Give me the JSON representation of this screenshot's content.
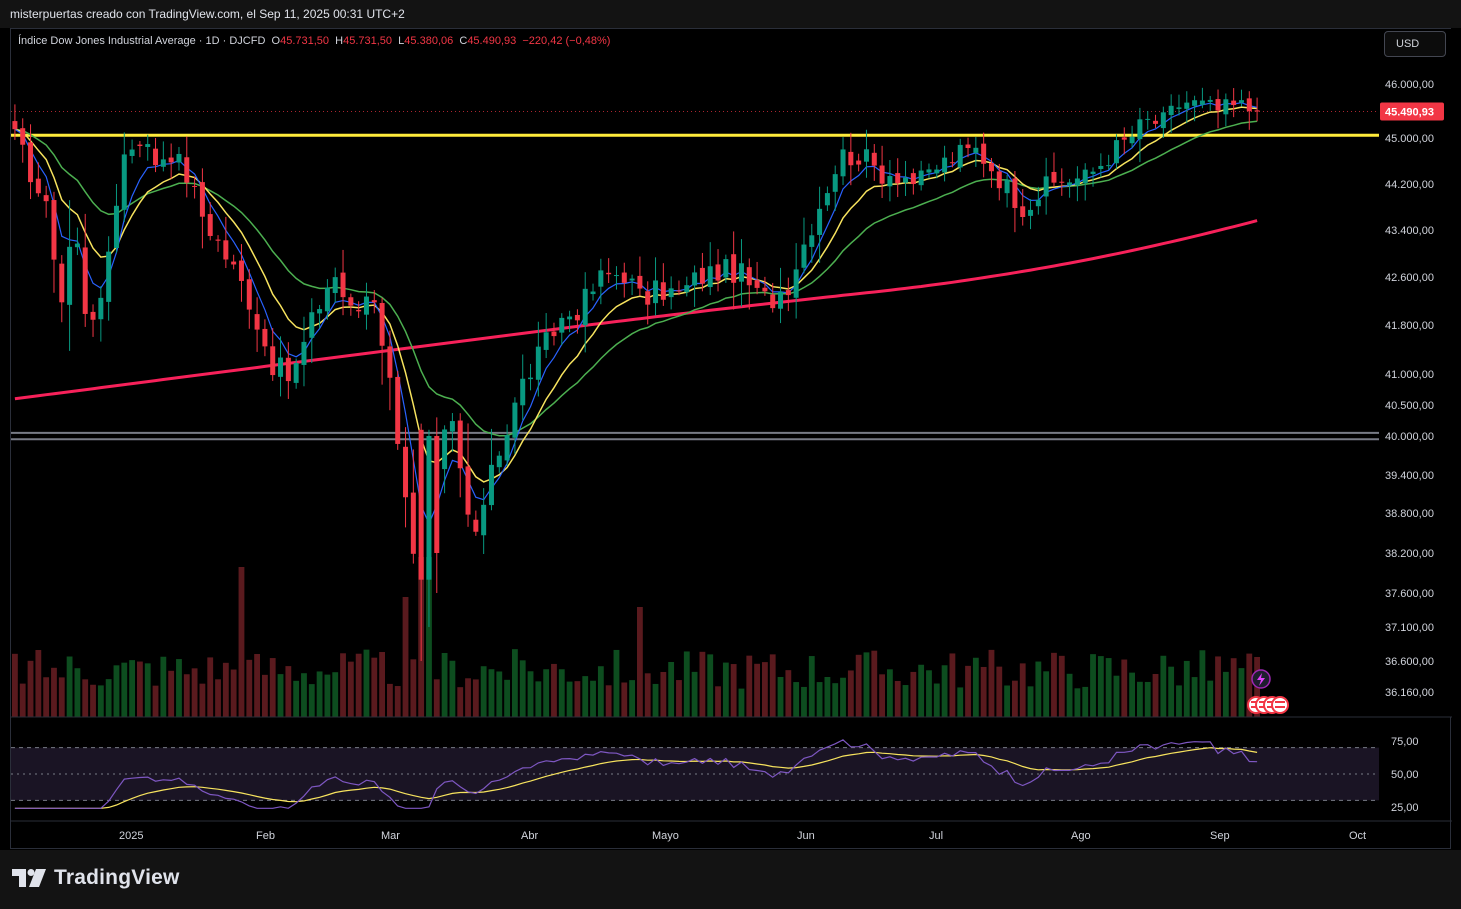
{
  "header": {
    "caption": "misterpuertas creado con TradingView.com, el Sep 11, 2025 00:31 UTC+2"
  },
  "legend": {
    "instrument": "Índice Dow Jones Industrial Average · 1D · DJCFD",
    "o_label": "O",
    "o_value": "45.731,50",
    "h_label": "H",
    "h_value": "45.731,50",
    "l_label": "L",
    "l_value": "45.380,06",
    "c_label": "C",
    "c_value": "45.490,93",
    "change": "−220,42 (−0,48%)"
  },
  "currency_button": "USD",
  "price_label": "45.490,93",
  "brand": "TradingView",
  "colors": {
    "up": "#089981",
    "down": "#f23645",
    "volume_up": "#0d4d1f",
    "volume_down": "#5a1a1e",
    "ema_fast": "#2962ff",
    "ema_20": "#f7e35e",
    "sma_50": "#4caf50",
    "sma_200": "#f7215a",
    "resistance": "#ffeb3b",
    "support": "#787b86",
    "rsi": "#7e57c2",
    "rsi_ma": "#f7e35e"
  },
  "icons": [
    "lightning-icon",
    "us-flag-icon"
  ],
  "chart_data": {
    "type": "candlestick",
    "price_axis_ticks": [
      "46.000,00",
      "45.000,00",
      "44.200,00",
      "43.400,00",
      "42.600,00",
      "41.800,00",
      "41.000,00",
      "40.500,00",
      "40.000,00",
      "39.400,00",
      "38.800,00",
      "38.200,00",
      "37.600,00",
      "37.100,00",
      "36.600,00",
      "36.160,00"
    ],
    "price_axis_values": [
      46000,
      45000,
      44200,
      43400,
      42600,
      41800,
      41000,
      40500,
      40000,
      39400,
      38800,
      38200,
      37600,
      37100,
      36600,
      36160
    ],
    "time_axis_ticks": [
      "2025",
      "Feb",
      "Mar",
      "Abr",
      "Mayo",
      "Jun",
      "Jul",
      "Ago",
      "Sep",
      "Oct"
    ],
    "rsi_axis_ticks": [
      "75,00",
      "50,00",
      "25,00"
    ],
    "rsi_axis_values": [
      75,
      50,
      25
    ],
    "horizontal_levels": [
      {
        "kind": "resistance",
        "price": 45050
      },
      {
        "kind": "support",
        "price": 40050
      },
      {
        "kind": "support",
        "price": 39950
      }
    ],
    "price_anchors": [
      {
        "month": "Dic",
        "close": 45000
      },
      {
        "month": "Ene-low",
        "close": 41900
      },
      {
        "month": "Ene-high",
        "close": 45000
      },
      {
        "month": "Mar-low",
        "close": 40800
      },
      {
        "month": "Abr-low",
        "close": 36600
      },
      {
        "month": "Jun",
        "close": 42500
      },
      {
        "month": "Jul",
        "close": 44500
      },
      {
        "month": "Sep",
        "close": 45490.93
      }
    ]
  }
}
